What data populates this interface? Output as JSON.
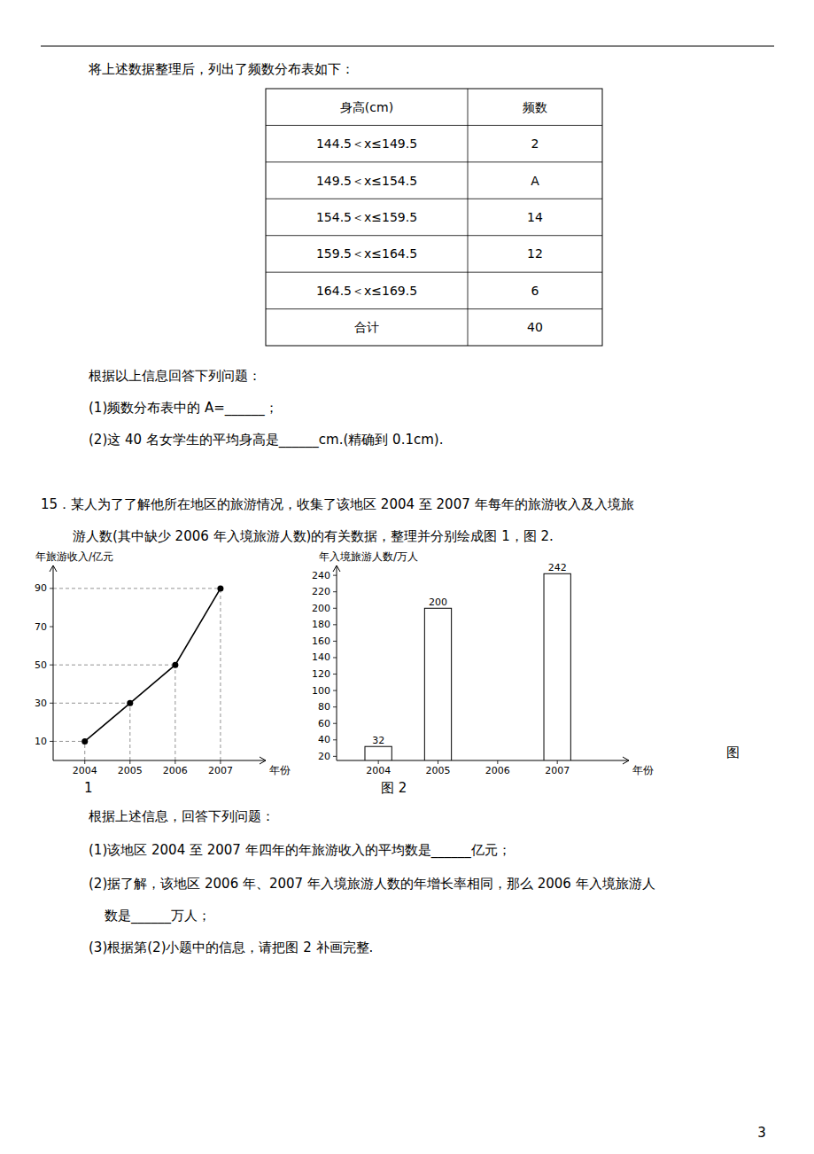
{
  "texts": [
    "将上述数据整理后，列出了频数分布表如下：",
    "根据以上信息回答下列问题：",
    "(1)频数分布表中的 A=______；",
    "(2)这 40 名女学生的平均身高是______cm.(精确到 0.1cm).",
    "15．某人为了了解他所在地区的旅游情况，收集了该地区 2004 至 2007 年每年的旅游收入及入境旅",
    "游人数(其中缺少 2006 年入境旅游人数)的有关数据，整理并分别绘成图 1，图 2.",
    "1",
    "图 2",
    "图",
    "根据上述信息，回答下列问题：",
    "(1)该地区 2004 至 2007 年四年的年旅游收入的平均数是______亿元；",
    "(2)据了解，该地区 2006 年、2007 年入境旅游人数的年增长率相同，那么 2006 年入境旅游人",
    "数是______万人；",
    "(3)根据第(2)小题中的信息，请把图 2 补画完整."
  ],
  "table": {
    "header": [
      "身高(cm)",
      "频数"
    ],
    "rows": [
      [
        "144.5＜x≤149.5",
        "2"
      ],
      [
        "149.5＜x≤154.5",
        "A"
      ],
      [
        "154.5＜x≤159.5",
        "14"
      ],
      [
        "159.5＜x≤164.5",
        "12"
      ],
      [
        "164.5＜x≤169.5",
        "6"
      ],
      [
        "合计",
        "40"
      ]
    ]
  },
  "page_num": "3",
  "chart_data": [
    {
      "type": "line",
      "title": "年旅游收入/亿元",
      "xlabel": "年份",
      "x": [
        2004,
        2005,
        2006,
        2007
      ],
      "values": [
        10,
        30,
        50,
        90
      ],
      "xlim": [
        2003.3,
        2008.0
      ],
      "ylim": [
        0,
        102
      ],
      "xticks": [
        2004,
        2005,
        2006,
        2007
      ],
      "yticks": [
        10,
        30,
        50,
        70,
        90
      ],
      "marker": "circle",
      "color": "#000000"
    },
    {
      "type": "bar",
      "title": "年入境旅游人数/万人",
      "xlabel": "年份",
      "x": [
        2004,
        2005,
        2006,
        2007
      ],
      "values": [
        32,
        200,
        null,
        242
      ],
      "xlim": [
        2003.3,
        2008.2
      ],
      "ylim": [
        15,
        252
      ],
      "xticks": [
        2004,
        2005,
        2006,
        2007
      ],
      "yticks": [
        20,
        40,
        60,
        80,
        100,
        120,
        140,
        160,
        180,
        200,
        220,
        240
      ],
      "data_labels": true,
      "color": "#ffffff"
    }
  ]
}
